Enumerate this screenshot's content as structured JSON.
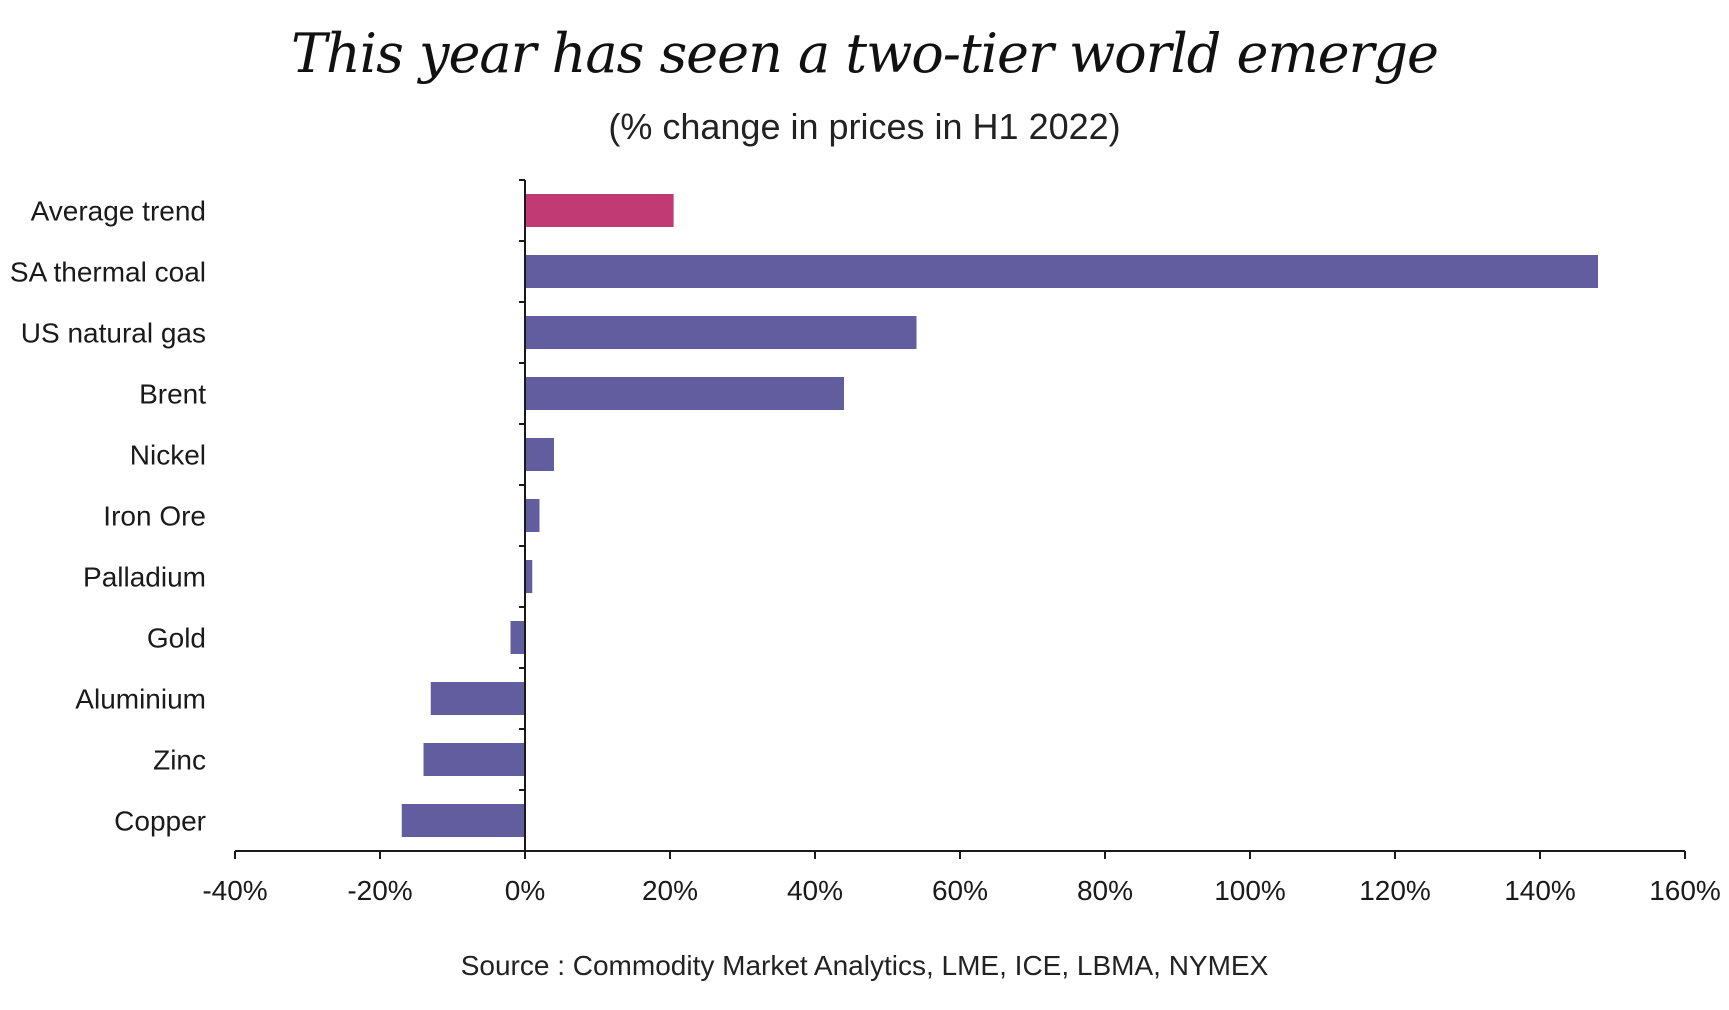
{
  "chart_data": {
    "type": "bar",
    "orientation": "horizontal",
    "title": "This year has seen a two-tier world emerge",
    "subtitle": "(% change in prices in H1 2022)",
    "source": "Source : Commodity Market Analytics, LME, ICE, LBMA, NYMEX",
    "categories": [
      "Average trend",
      "SA thermal coal",
      "US natural gas",
      "Brent",
      "Nickel",
      "Iron Ore",
      "Palladium",
      "Gold",
      "Aluminium",
      "Zinc",
      "Copper"
    ],
    "values": [
      20.5,
      148,
      54,
      44,
      4,
      2,
      1,
      -2,
      -13,
      -14,
      -17
    ],
    "highlight_category": "Average trend",
    "colors": {
      "highlight": "#C13A74",
      "bars": "#615D9F",
      "axis": "#1a1a1a"
    },
    "xlim": [
      -40,
      160
    ],
    "xticks": [
      -40,
      -20,
      0,
      20,
      40,
      60,
      80,
      100,
      120,
      140,
      160
    ],
    "xtick_labels": [
      "-40%",
      "-20%",
      "0%",
      "20%",
      "40%",
      "60%",
      "80%",
      "100%",
      "120%",
      "140%",
      "160%"
    ],
    "grid": false,
    "legend": "none"
  }
}
